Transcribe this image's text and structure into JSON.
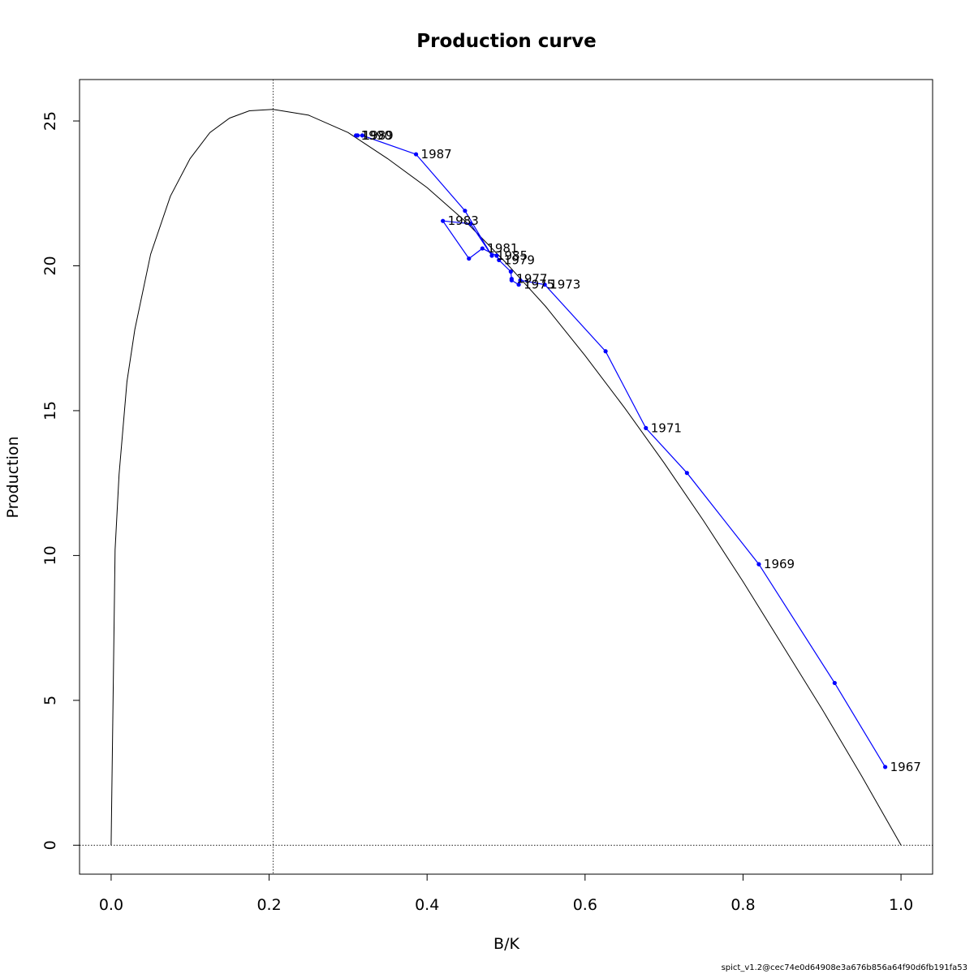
{
  "chart_data": {
    "type": "line",
    "title": "Production curve",
    "xlabel": "B/K",
    "ylabel": "Production",
    "xlim": [
      -0.04,
      1.04
    ],
    "ylim": [
      -1,
      26.43
    ],
    "x_ticks": [
      "0.0",
      "0.2",
      "0.4",
      "0.6",
      "0.8",
      "1.0"
    ],
    "y_ticks": [
      "0",
      "5",
      "10",
      "15",
      "20",
      "25"
    ],
    "grid": false,
    "colors": {
      "curve": "#000000",
      "trajectory": "#0000ff",
      "reference": "#000000"
    },
    "reference_lines": {
      "bmsy_over_k": 0.205,
      "zero_production": 0
    },
    "curve": {
      "name": "theoretical production curve",
      "x": [
        0.0,
        0.005,
        0.01,
        0.02,
        0.03,
        0.05,
        0.075,
        0.1,
        0.125,
        0.15,
        0.175,
        0.205,
        0.25,
        0.3,
        0.35,
        0.4,
        0.45,
        0.5,
        0.55,
        0.6,
        0.65,
        0.7,
        0.75,
        0.8,
        0.85,
        0.9,
        0.95,
        1.0
      ],
      "y": [
        0.0,
        10.2,
        12.8,
        16.0,
        17.8,
        20.4,
        22.4,
        23.7,
        24.6,
        25.1,
        25.35,
        25.4,
        25.2,
        24.6,
        23.7,
        22.7,
        21.5,
        20.1,
        18.6,
        16.9,
        15.1,
        13.2,
        11.2,
        9.1,
        6.9,
        4.7,
        2.4,
        0.0
      ]
    },
    "series": [
      {
        "name": "trajectory",
        "points": [
          {
            "x": 0.98,
            "y": 2.7,
            "label": "1967"
          },
          {
            "x": 0.916,
            "y": 5.6,
            "label": ""
          },
          {
            "x": 0.82,
            "y": 9.7,
            "label": "1969"
          },
          {
            "x": 0.729,
            "y": 12.85,
            "label": ""
          },
          {
            "x": 0.677,
            "y": 14.4,
            "label": "1971"
          },
          {
            "x": 0.626,
            "y": 17.05,
            "label": ""
          },
          {
            "x": 0.549,
            "y": 19.35,
            "label": "1973"
          },
          {
            "x": 0.518,
            "y": 19.5,
            "label": ""
          },
          {
            "x": 0.516,
            "y": 19.35,
            "label": "1975"
          },
          {
            "x": 0.507,
            "y": 19.5,
            "label": ""
          },
          {
            "x": 0.507,
            "y": 19.55,
            "label": "1977"
          },
          {
            "x": 0.506,
            "y": 19.8,
            "label": ""
          },
          {
            "x": 0.491,
            "y": 20.2,
            "label": "1979"
          },
          {
            "x": 0.488,
            "y": 20.35,
            "label": ""
          },
          {
            "x": 0.47,
            "y": 20.6,
            "label": "1981"
          },
          {
            "x": 0.453,
            "y": 20.25,
            "label": ""
          },
          {
            "x": 0.42,
            "y": 21.55,
            "label": "1983"
          },
          {
            "x": 0.455,
            "y": 21.45,
            "label": ""
          },
          {
            "x": 0.482,
            "y": 20.35,
            "label": "1985"
          },
          {
            "x": 0.448,
            "y": 21.9,
            "label": ""
          },
          {
            "x": 0.386,
            "y": 23.85,
            "label": "1987"
          },
          {
            "x": 0.318,
            "y": 24.5,
            "label": ""
          },
          {
            "x": 0.312,
            "y": 24.5,
            "label": "1989"
          },
          {
            "x": 0.31,
            "y": 24.5,
            "label": "1990"
          }
        ]
      }
    ]
  },
  "footer": "spict_v1.2@cec74e0d64908e3a676b856a64f90d6fb191fa53"
}
